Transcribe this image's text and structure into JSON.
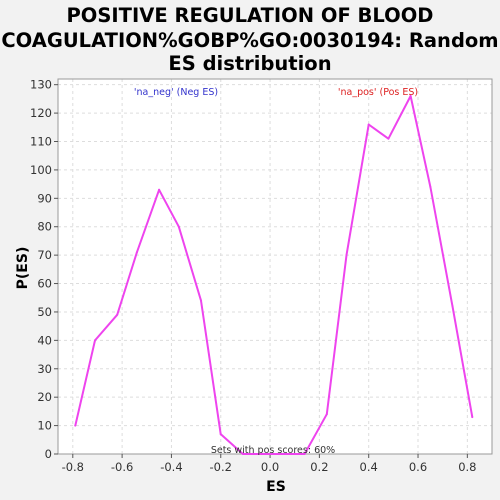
{
  "chart_data": {
    "type": "line",
    "title_lines": [
      "POSITIVE REGULATION OF BLOOD",
      "COAGULATION%GOBP%GO:0030194: Random",
      "ES distribution"
    ],
    "xlabel": "ES",
    "ylabel": "P(ES)",
    "xlim": [
      -0.86,
      0.9
    ],
    "ylim": [
      0,
      132
    ],
    "x_ticks": [
      -0.8,
      -0.6,
      -0.4,
      -0.2,
      0.0,
      0.2,
      0.4,
      0.6,
      0.8
    ],
    "x_tick_labels": [
      "-0.8",
      "-0.6",
      "-0.4",
      "-0.2",
      "0.0",
      "0.2",
      "0.4",
      "0.6",
      "0.8"
    ],
    "y_ticks": [
      0,
      10,
      20,
      30,
      40,
      50,
      60,
      70,
      80,
      90,
      100,
      110,
      120,
      130
    ],
    "y_tick_labels": [
      "0",
      "10",
      "20",
      "30",
      "40",
      "50",
      "60",
      "70",
      "80",
      "90",
      "100",
      "110",
      "120",
      "130"
    ],
    "grid": true,
    "series": [
      {
        "color": "#ee44ee",
        "x": [
          -0.79,
          -0.71,
          -0.62,
          -0.54,
          -0.45,
          -0.37,
          -0.28,
          -0.2,
          -0.11,
          -0.03,
          0.06,
          0.14,
          0.23,
          0.31,
          0.4,
          0.48,
          0.57,
          0.65,
          0.74,
          0.82
        ],
        "y": [
          10,
          40,
          49,
          71,
          93,
          80,
          54,
          7,
          0,
          0,
          0,
          0,
          14,
          70,
          116,
          111,
          126,
          94,
          52,
          13
        ]
      }
    ],
    "annotations": [
      {
        "text": "'na_neg' (Neg ES)",
        "color": "#3333cc"
      },
      {
        "text": "'na_pos' (Pos ES)",
        "color": "#dd2222"
      },
      {
        "text": "Sets with pos scores: 60%",
        "color": "#333333"
      }
    ]
  }
}
